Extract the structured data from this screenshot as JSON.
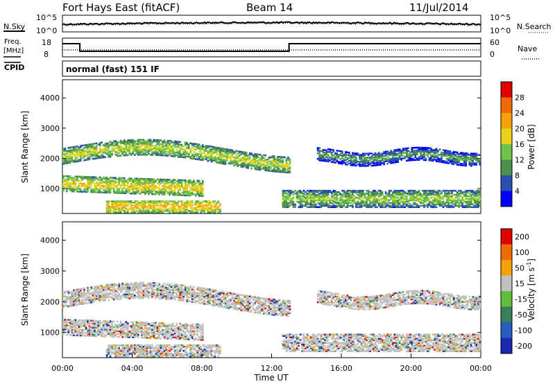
{
  "header": {
    "radar": "Fort Hays East (fitACF)",
    "beam": "Beam 14",
    "date": "11/Jul/2014"
  },
  "strips": {
    "nsky_label": "N.Sky",
    "nsearch_label": "N.Search",
    "noise_ticks": [
      "10^5",
      "10^0"
    ],
    "freq_label_1": "Freq.",
    "freq_label_2": "[MHz]",
    "freq_ticks": [
      "18",
      "8"
    ],
    "nave_label": "Nave",
    "nave_ticks": [
      "60",
      "0"
    ],
    "cpid_label": "CPID",
    "cpid_text": "normal (fast) 151 IF"
  },
  "chart_data": [
    {
      "type": "heatmap",
      "name": "power",
      "ylabel": "Slant Range [km]",
      "yticks": [
        1000,
        2000,
        3000,
        4000
      ],
      "ylim": [
        180,
        4600
      ],
      "colorbar_label": "Power [dB]",
      "colorbar_ticks": [
        4,
        8,
        12,
        16,
        20,
        24,
        28
      ],
      "colors": [
        "#0000ff",
        "#2a4fb0",
        "#4d8f4d",
        "#6fc24a",
        "#e8d21a",
        "#f5a10a",
        "#f06a0a",
        "#e00000"
      ]
    },
    {
      "type": "heatmap",
      "name": "velocity",
      "ylabel": "Slant Range [km]",
      "yticks": [
        1000,
        2000,
        3000,
        4000
      ],
      "ylim": [
        180,
        4600
      ],
      "colorbar_label": "Velocity [m s-1]",
      "colorbar_ticks": [
        200,
        100,
        50,
        15,
        -15,
        -50,
        -100,
        -200
      ],
      "colors": [
        "#1a2ab0",
        "#2a5cc0",
        "#3a7f5a",
        "#5fbf3a",
        "#c0c0c0",
        "#f5a10a",
        "#f06a0a",
        "#e00000"
      ]
    }
  ],
  "time_axis": {
    "ticks": [
      "00:00",
      "04:00",
      "08:00",
      "12:00",
      "16:00",
      "20:00",
      "00:00"
    ],
    "label": "Time UT"
  }
}
